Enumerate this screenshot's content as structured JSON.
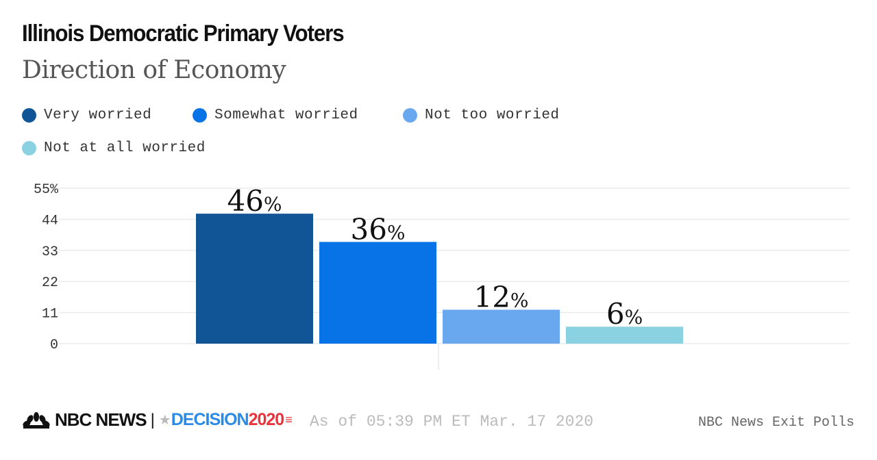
{
  "header": {
    "title": "Illinois Democratic Primary Voters",
    "subtitle": "Direction of Economy"
  },
  "footer": {
    "logo_text": "NBC NEWS",
    "logo_decision": "DECISION",
    "logo_year": "2020",
    "as_of": "As of 05:39 PM ET Mar. 17 2020",
    "source": "NBC News Exit Polls"
  },
  "chart_data": {
    "type": "bar",
    "title": "Illinois Democratic Primary Voters",
    "subtitle": "Direction of Economy",
    "categories": [
      "Very worried",
      "Somewhat worried",
      "Not too worried",
      "Not at all worried"
    ],
    "values": [
      46,
      36,
      12,
      6
    ],
    "data_labels": [
      "46",
      "36",
      "12",
      "6"
    ],
    "label_suffix": "%",
    "colors": [
      "#125596",
      "#0873e6",
      "#69a8ee",
      "#8ad2e2"
    ],
    "yticks": [
      "0",
      "11",
      "22",
      "33",
      "44",
      "55%"
    ],
    "ytick_values": [
      0,
      11,
      22,
      33,
      44,
      55
    ],
    "ylim": [
      0,
      55
    ],
    "grid": true,
    "legend_placement": "top-left"
  }
}
